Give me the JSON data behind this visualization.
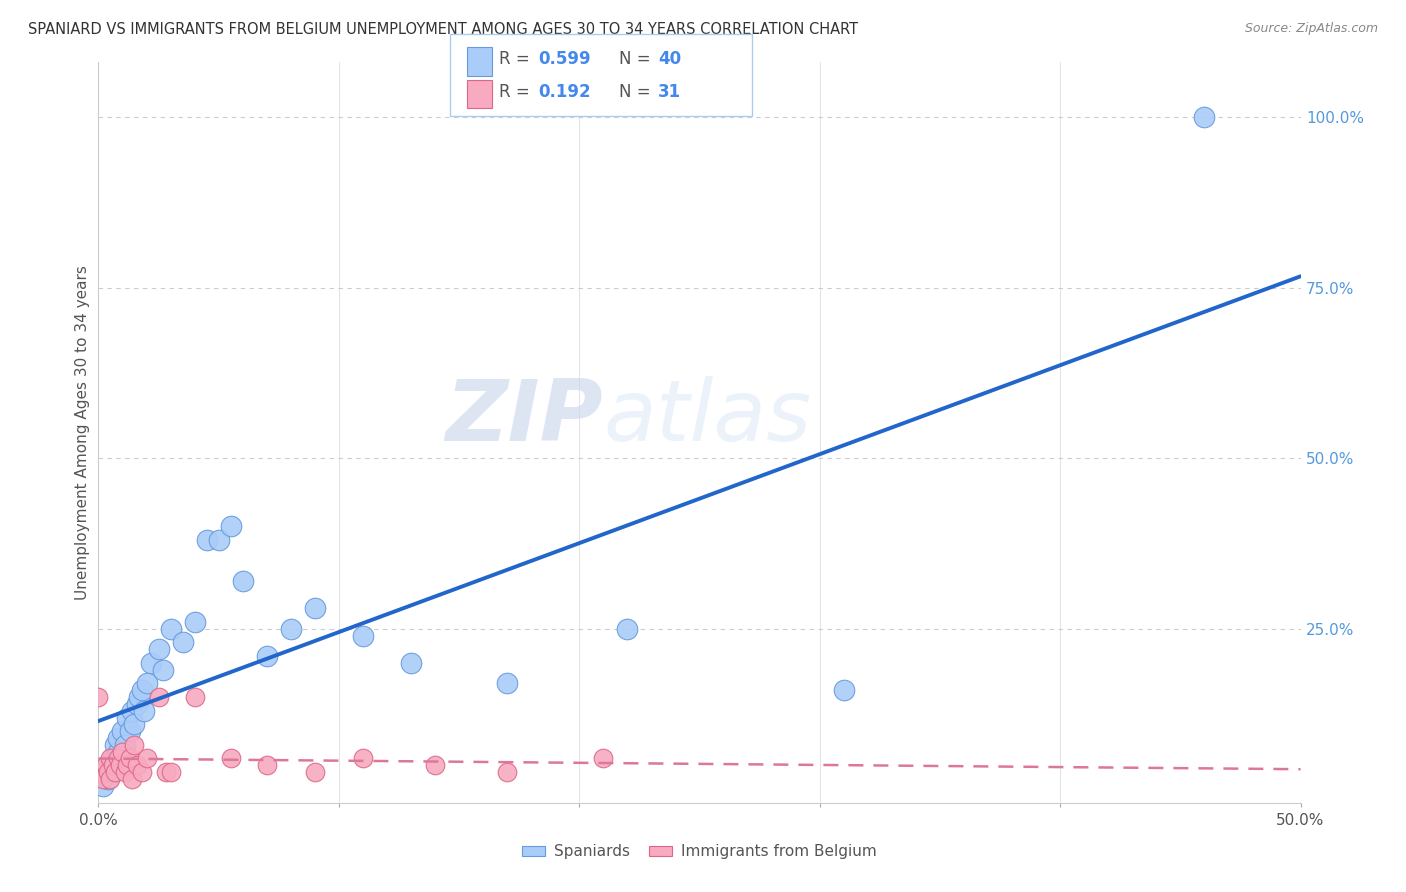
{
  "title": "SPANIARD VS IMMIGRANTS FROM BELGIUM UNEMPLOYMENT AMONG AGES 30 TO 34 YEARS CORRELATION CHART",
  "source": "Source: ZipAtlas.com",
  "ylabel": "Unemployment Among Ages 30 to 34 years",
  "right_yticks": [
    "100.0%",
    "75.0%",
    "50.0%",
    "25.0%"
  ],
  "right_ytick_vals": [
    1.0,
    0.75,
    0.5,
    0.25
  ],
  "xlim": [
    0.0,
    0.5
  ],
  "ylim": [
    -0.005,
    1.08
  ],
  "legend_r1": "0.599",
  "legend_n1": "40",
  "legend_r2": "0.192",
  "legend_n2": "31",
  "watermark_zip": "ZIP",
  "watermark_atlas": "atlas",
  "spaniards_color": "#aaccf8",
  "spaniards_edge_color": "#6699dd",
  "immigrants_color": "#f8aac0",
  "immigrants_edge_color": "#dd6688",
  "trend_spaniards_color": "#2266cc",
  "trend_immigrants_color": "#dd7799",
  "grid_color": "#cccccc",
  "title_color": "#333333",
  "source_color": "#888888",
  "right_tick_color": "#5599dd",
  "spaniards_x": [
    0.002,
    0.003,
    0.004,
    0.005,
    0.006,
    0.007,
    0.007,
    0.008,
    0.008,
    0.009,
    0.01,
    0.011,
    0.012,
    0.013,
    0.014,
    0.015,
    0.016,
    0.017,
    0.018,
    0.019,
    0.02,
    0.022,
    0.025,
    0.027,
    0.03,
    0.035,
    0.04,
    0.045,
    0.05,
    0.055,
    0.06,
    0.07,
    0.08,
    0.09,
    0.11,
    0.13,
    0.17,
    0.22,
    0.31,
    0.46
  ],
  "spaniards_y": [
    0.02,
    0.04,
    0.03,
    0.05,
    0.06,
    0.05,
    0.08,
    0.07,
    0.09,
    0.06,
    0.1,
    0.08,
    0.12,
    0.1,
    0.13,
    0.11,
    0.14,
    0.15,
    0.16,
    0.13,
    0.17,
    0.2,
    0.22,
    0.19,
    0.25,
    0.23,
    0.26,
    0.38,
    0.38,
    0.4,
    0.32,
    0.21,
    0.25,
    0.28,
    0.24,
    0.2,
    0.17,
    0.25,
    0.16,
    1.0
  ],
  "immigrants_x": [
    0.0,
    0.001,
    0.002,
    0.003,
    0.004,
    0.005,
    0.005,
    0.006,
    0.007,
    0.008,
    0.009,
    0.01,
    0.011,
    0.012,
    0.013,
    0.014,
    0.015,
    0.016,
    0.018,
    0.02,
    0.025,
    0.028,
    0.03,
    0.04,
    0.055,
    0.07,
    0.09,
    0.11,
    0.14,
    0.17,
    0.21
  ],
  "immigrants_y": [
    0.15,
    0.04,
    0.03,
    0.05,
    0.04,
    0.06,
    0.03,
    0.05,
    0.04,
    0.06,
    0.05,
    0.07,
    0.04,
    0.05,
    0.06,
    0.03,
    0.08,
    0.05,
    0.04,
    0.06,
    0.15,
    0.04,
    0.04,
    0.15,
    0.06,
    0.05,
    0.04,
    0.06,
    0.05,
    0.04,
    0.06
  ]
}
